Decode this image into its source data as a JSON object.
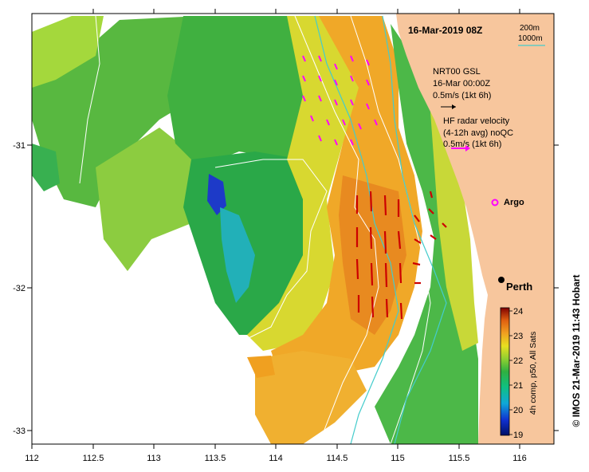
{
  "map": {
    "date_title": "16-Mar-2019 08Z",
    "contour_labels": [
      "200m",
      "1000m"
    ],
    "gsl": {
      "title": "NRT00 GSL",
      "time": "16-Mar 00:00Z",
      "scale": "0.5m/s (1kt 6h)"
    },
    "hf": {
      "title": "HF radar velocity",
      "subtitle": "(4-12h avg) noQC",
      "scale": "0.5m/s (1kt 6h)"
    },
    "argo_label": "Argo",
    "perth_label": "Perth",
    "credit": "© IMOS 21-Mar-2019 11:43 Hobart",
    "x_ticks": [
      "112",
      "112.5",
      "113",
      "113.5",
      "114",
      "114.5",
      "115",
      "115.5",
      "116"
    ],
    "y_ticks": [
      "-31",
      "-32",
      "-33"
    ]
  },
  "colorbar": {
    "label": "4h comp, p50, All Sats",
    "ticks": [
      "24",
      "23",
      "22",
      "21",
      "20",
      "19"
    ],
    "min": 19,
    "max": 24
  },
  "colors": {
    "land": "#f7c69d",
    "hf_arrow": "#ff00ff",
    "gsl_arrow": "#cc0000",
    "contour_200": "#44cccc",
    "contour_1000": "#ffffff"
  }
}
